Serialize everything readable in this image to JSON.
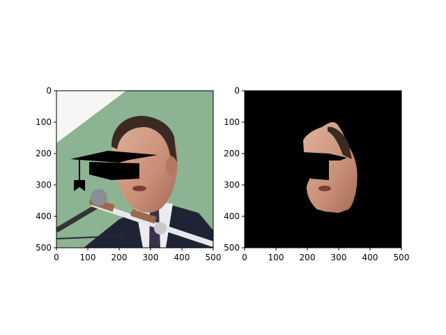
{
  "chart_data": [
    {
      "type": "image",
      "content": "photo of a man speaking at microphones with a graduation cap drawn over his eyes",
      "xlim": [
        0,
        500
      ],
      "ylim": [
        500,
        0
      ],
      "xticks": [
        "0",
        "100",
        "200",
        "300",
        "400",
        "500"
      ],
      "yticks": [
        "0",
        "100",
        "200",
        "300",
        "400",
        "500"
      ],
      "colors": {
        "background_green": "#8cb392",
        "skin": "#c98f77",
        "hair": "#3b2a22",
        "suit": "#1e2436",
        "cap": "#000000"
      }
    },
    {
      "type": "image",
      "content": "segmentation mask: only the face region visible on black background, with the cap overlay cut out",
      "xlim": [
        0,
        500
      ],
      "ylim": [
        500,
        0
      ],
      "xticks": [
        "0",
        "100",
        "200",
        "300",
        "400",
        "500"
      ],
      "yticks": [
        "0",
        "100",
        "200",
        "300",
        "400",
        "500"
      ],
      "colors": {
        "background": "#000000",
        "skin": "#c98f77"
      }
    }
  ]
}
